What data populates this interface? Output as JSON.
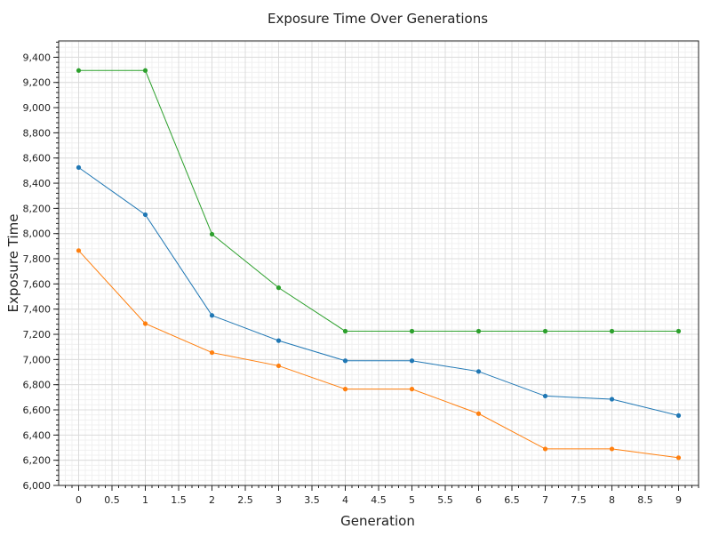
{
  "chart_data": {
    "type": "line",
    "title": "Exposure Time Over Generations",
    "xlabel": "Generation",
    "ylabel": "Exposure Time",
    "xlim": [
      -0.3,
      9.3
    ],
    "ylim": [
      6000,
      9530
    ],
    "x_ticks": [
      0,
      0.5,
      1,
      1.5,
      2,
      2.5,
      3,
      3.5,
      4,
      4.5,
      5,
      5.5,
      6,
      6.5,
      7,
      7.5,
      8,
      8.5,
      9
    ],
    "x_tick_labels": [
      "0",
      "0.5",
      "1",
      "1.5",
      "2",
      "2.5",
      "3",
      "3.5",
      "4",
      "4.5",
      "5",
      "5.5",
      "6",
      "6.5",
      "7",
      "7.5",
      "8",
      "8.5",
      "9"
    ],
    "y_ticks": [
      6000,
      6200,
      6400,
      6600,
      6800,
      7000,
      7200,
      7400,
      7600,
      7800,
      8000,
      8200,
      8400,
      8600,
      8800,
      9000,
      9200,
      9400
    ],
    "y_tick_labels": [
      "6,000",
      "6,200",
      "6,400",
      "6,600",
      "6,800",
      "7,000",
      "7,200",
      "7,400",
      "7,600",
      "7,800",
      "8,000",
      "8,200",
      "8,400",
      "8,600",
      "8,800",
      "9,000",
      "9,200",
      "9,400"
    ],
    "grid": true,
    "x": [
      0,
      1,
      2,
      3,
      4,
      5,
      6,
      7,
      8,
      9
    ],
    "series": [
      {
        "color": "#1f77b4",
        "values": [
          8525,
          8150,
          7350,
          7150,
          6990,
          6990,
          6905,
          6710,
          6685,
          6555
        ]
      },
      {
        "color": "#ff7f0e",
        "values": [
          7865,
          7285,
          7055,
          6950,
          6765,
          6765,
          6570,
          6290,
          6290,
          6220
        ]
      },
      {
        "color": "#2ca02c",
        "values": [
          9295,
          9295,
          7995,
          7570,
          7225,
          7225,
          7225,
          7225,
          7225,
          7225
        ]
      }
    ]
  }
}
